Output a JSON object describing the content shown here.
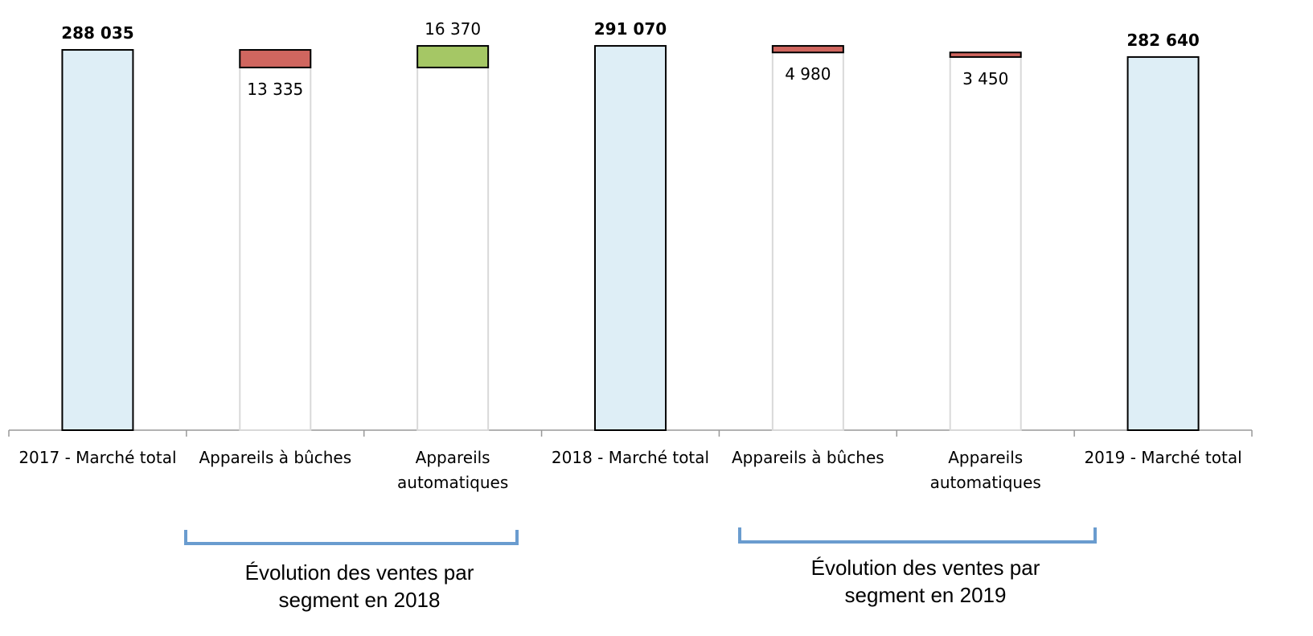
{
  "chart_data": {
    "type": "waterfall",
    "categories": [
      "2017 - Marché total",
      "Appareils à bûches",
      "Appareils automatiques",
      "2018 - Marché total",
      "Appareils à bûches",
      "Appareils automatiques",
      "2019 - Marché total"
    ],
    "values": [
      288035,
      13335,
      16370,
      291070,
      4980,
      3450,
      282640
    ],
    "value_labels": [
      "288 035",
      "13 335",
      "16 370",
      "291 070",
      "4 980",
      "3 450",
      "282 640"
    ],
    "measure": [
      "total",
      "decrease",
      "increase",
      "total",
      "decrease",
      "decrease",
      "total"
    ],
    "colors": {
      "total": "#deeef6",
      "decrease": "#d0665f",
      "increase": "#a5c765"
    },
    "ylim": [
      0,
      300000
    ],
    "annotations": [
      {
        "text": "Évolution des ventes par segment en 2018"
      },
      {
        "text": "Évolution des ventes par segment en 2019"
      }
    ]
  }
}
